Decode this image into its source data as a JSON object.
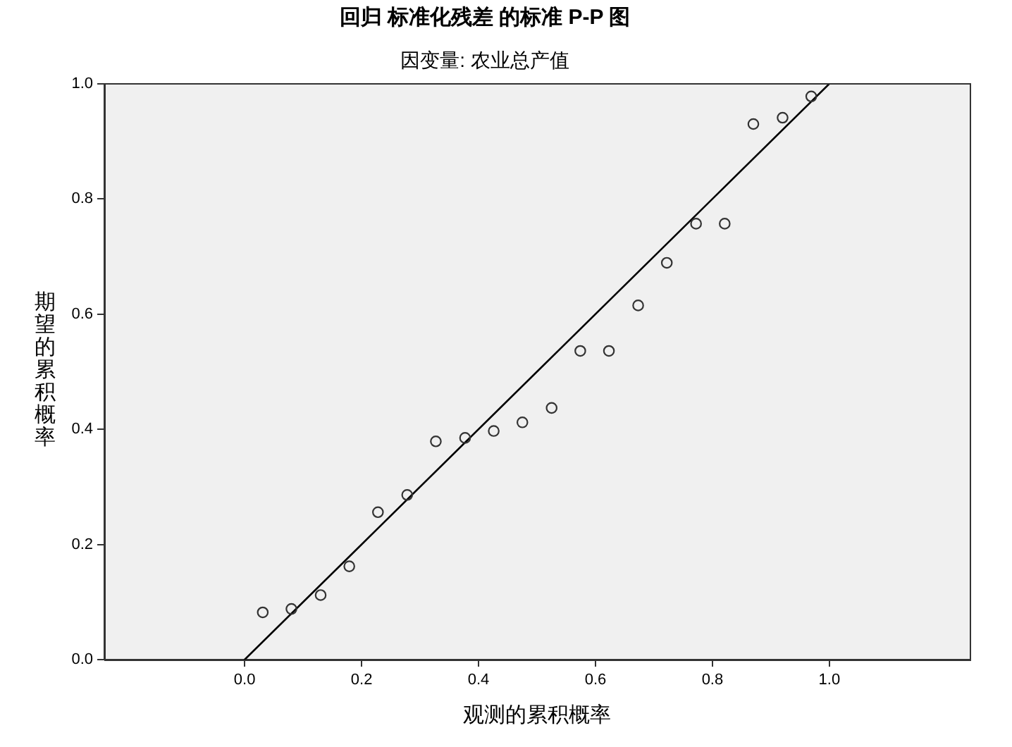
{
  "chart_data": {
    "type": "scatter",
    "title": "回归 标准化残差 的标准 P-P 图",
    "subtitle": "因变量: 农业总产值",
    "xlabel": "观测的累积概率",
    "ylabel": "期望的累积概率",
    "xlim": [
      -0.24,
      1.24
    ],
    "ylim": [
      0,
      1
    ],
    "xticks": [
      {
        "value": 0,
        "label": "0.0"
      },
      0.2,
      0.4,
      0.6,
      0.8,
      {
        "value": 1,
        "label": "1.0"
      }
    ],
    "yticks": [
      {
        "value": 0,
        "label": "0.0"
      },
      0.2,
      0.4,
      0.6,
      0.8,
      {
        "value": 1,
        "label": "1.0"
      }
    ],
    "grid": false,
    "legend": false,
    "marker": "circle",
    "series": [
      {
        "type": "scatter",
        "color": "#333333",
        "x": [
          0.031,
          0.08,
          0.13,
          0.179,
          0.228,
          0.278,
          0.327,
          0.377,
          0.426,
          0.475,
          0.525,
          0.574,
          0.623,
          0.673,
          0.722,
          0.772,
          0.821,
          0.87,
          0.92,
          0.969
        ],
        "values": [
          0.082,
          0.088,
          0.112,
          0.162,
          0.256,
          0.286,
          0.379,
          0.385,
          0.397,
          0.412,
          0.437,
          0.536,
          0.536,
          0.615,
          0.689,
          0.757,
          0.757,
          0.93,
          0.941,
          0.978
        ]
      },
      {
        "type": "line",
        "color": "#000000",
        "marker": "none",
        "x": [
          0,
          1
        ],
        "values": [
          0,
          1
        ]
      }
    ]
  }
}
